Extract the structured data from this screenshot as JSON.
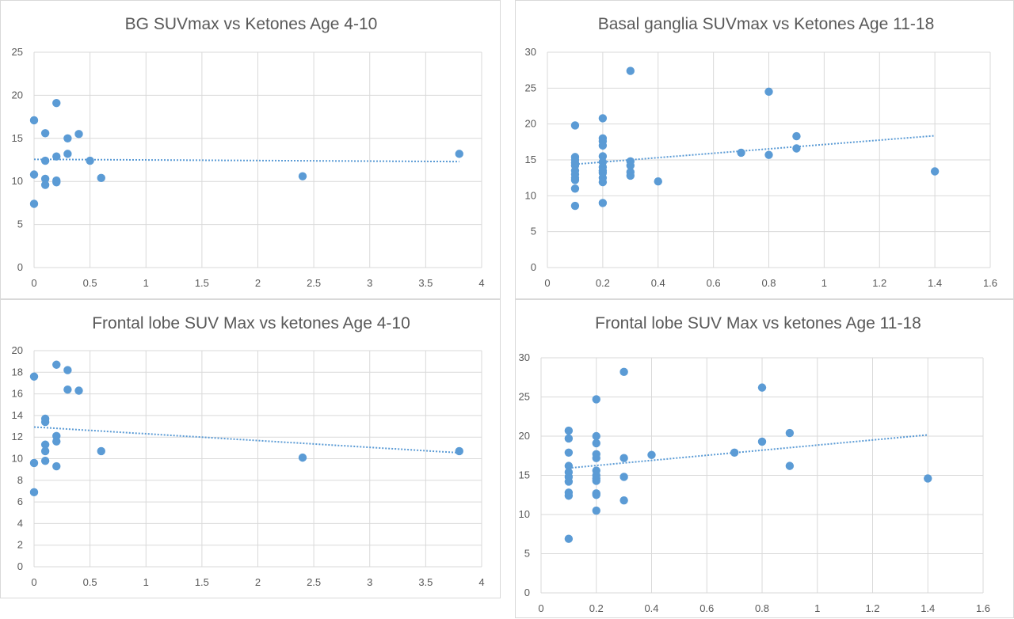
{
  "chart_data": [
    {
      "type": "scatter",
      "title": "BG SUVmax vs Ketones Age 4-10",
      "xlim": [
        0,
        4
      ],
      "ylim": [
        0,
        25
      ],
      "xticks": [
        "0",
        "0.5",
        "1",
        "1.5",
        "2",
        "2.5",
        "3",
        "3.5",
        "4"
      ],
      "yticks": [
        "0",
        "5",
        "10",
        "15",
        "20",
        "25"
      ],
      "grid": true,
      "legend": "none",
      "trendline": "linear",
      "color": "#5b9bd5",
      "points": [
        [
          0,
          17.1
        ],
        [
          0,
          10.8
        ],
        [
          0,
          7.4
        ],
        [
          0.1,
          15.6
        ],
        [
          0.1,
          12.4
        ],
        [
          0.1,
          10.3
        ],
        [
          0.1,
          9.6
        ],
        [
          0.2,
          19.1
        ],
        [
          0.2,
          12.9
        ],
        [
          0.2,
          10.1
        ],
        [
          0.2,
          9.9
        ],
        [
          0.3,
          15.0
        ],
        [
          0.3,
          13.2
        ],
        [
          0.4,
          15.5
        ],
        [
          0.5,
          12.4
        ],
        [
          0.6,
          10.4
        ],
        [
          2.4,
          10.6
        ],
        [
          3.8,
          13.2
        ]
      ]
    },
    {
      "type": "scatter",
      "title": "Basal ganglia SUVmax vs Ketones Age 11-18",
      "xlim": [
        0,
        1.6
      ],
      "ylim": [
        0,
        30
      ],
      "xticks": [
        "0",
        "0.2",
        "0.4",
        "0.6",
        "0.8",
        "1",
        "1.2",
        "1.4",
        "1.6"
      ],
      "yticks": [
        "0",
        "5",
        "10",
        "15",
        "20",
        "25",
        "30"
      ],
      "grid": true,
      "legend": "none",
      "trendline": "linear",
      "color": "#5b9bd5",
      "points": [
        [
          0.1,
          19.8
        ],
        [
          0.1,
          15.4
        ],
        [
          0.1,
          15.0
        ],
        [
          0.1,
          14.6
        ],
        [
          0.1,
          14.2
        ],
        [
          0.1,
          13.5
        ],
        [
          0.1,
          13.0
        ],
        [
          0.1,
          12.5
        ],
        [
          0.1,
          12.2
        ],
        [
          0.1,
          11.0
        ],
        [
          0.1,
          8.6
        ],
        [
          0.2,
          20.8
        ],
        [
          0.2,
          18.0
        ],
        [
          0.2,
          17.6
        ],
        [
          0.2,
          17.0
        ],
        [
          0.2,
          15.5
        ],
        [
          0.2,
          14.7
        ],
        [
          0.2,
          14.0
        ],
        [
          0.2,
          13.5
        ],
        [
          0.2,
          13.2
        ],
        [
          0.2,
          12.5
        ],
        [
          0.2,
          11.9
        ],
        [
          0.2,
          9.0
        ],
        [
          0.3,
          27.4
        ],
        [
          0.3,
          14.8
        ],
        [
          0.3,
          14.2
        ],
        [
          0.3,
          13.3
        ],
        [
          0.3,
          12.8
        ],
        [
          0.4,
          12.0
        ],
        [
          0.7,
          16.0
        ],
        [
          0.8,
          24.5
        ],
        [
          0.8,
          15.7
        ],
        [
          0.9,
          18.3
        ],
        [
          0.9,
          16.6
        ],
        [
          1.4,
          13.4
        ]
      ]
    },
    {
      "type": "scatter",
      "title": "Frontal lobe SUV Max vs ketones Age 4-10",
      "xlim": [
        0,
        4
      ],
      "ylim": [
        0,
        20
      ],
      "xticks": [
        "0",
        "0.5",
        "1",
        "1.5",
        "2",
        "2.5",
        "3",
        "3.5",
        "4"
      ],
      "yticks": [
        "0",
        "2",
        "4",
        "6",
        "8",
        "10",
        "12",
        "14",
        "16",
        "18",
        "20"
      ],
      "grid": true,
      "legend": "none",
      "trendline": "linear",
      "color": "#5b9bd5",
      "points": [
        [
          0,
          17.6
        ],
        [
          0,
          9.6
        ],
        [
          0,
          6.9
        ],
        [
          0.1,
          13.7
        ],
        [
          0.1,
          13.4
        ],
        [
          0.1,
          11.3
        ],
        [
          0.1,
          10.7
        ],
        [
          0.1,
          9.8
        ],
        [
          0.2,
          18.7
        ],
        [
          0.2,
          12.1
        ],
        [
          0.2,
          11.6
        ],
        [
          0.2,
          9.3
        ],
        [
          0.3,
          18.2
        ],
        [
          0.3,
          16.4
        ],
        [
          0.4,
          16.3
        ],
        [
          0.6,
          10.7
        ],
        [
          2.4,
          10.1
        ],
        [
          3.8,
          10.7
        ]
      ]
    },
    {
      "type": "scatter",
      "title": "Frontal lobe SUV Max vs ketones  Age 11-18",
      "xlim": [
        0,
        1.6
      ],
      "ylim": [
        0,
        30
      ],
      "xticks": [
        "0",
        "0.2",
        "0.4",
        "0.6",
        "0.8",
        "1",
        "1.2",
        "1.4",
        "1.6"
      ],
      "yticks": [
        "0",
        "5",
        "10",
        "15",
        "20",
        "25",
        "30"
      ],
      "grid": true,
      "legend": "none",
      "trendline": "linear",
      "color": "#5b9bd5",
      "points": [
        [
          0.1,
          20.7
        ],
        [
          0.1,
          19.7
        ],
        [
          0.1,
          17.9
        ],
        [
          0.1,
          16.2
        ],
        [
          0.1,
          15.4
        ],
        [
          0.1,
          14.8
        ],
        [
          0.1,
          14.2
        ],
        [
          0.1,
          12.8
        ],
        [
          0.1,
          12.4
        ],
        [
          0.1,
          6.9
        ],
        [
          0.2,
          24.7
        ],
        [
          0.2,
          20.0
        ],
        [
          0.2,
          19.1
        ],
        [
          0.2,
          17.7
        ],
        [
          0.2,
          17.2
        ],
        [
          0.2,
          15.6
        ],
        [
          0.2,
          15.0
        ],
        [
          0.2,
          14.6
        ],
        [
          0.2,
          14.3
        ],
        [
          0.2,
          12.7
        ],
        [
          0.2,
          12.5
        ],
        [
          0.2,
          10.5
        ],
        [
          0.3,
          28.2
        ],
        [
          0.3,
          17.2
        ],
        [
          0.3,
          14.8
        ],
        [
          0.3,
          11.8
        ],
        [
          0.4,
          17.6
        ],
        [
          0.7,
          17.9
        ],
        [
          0.8,
          26.2
        ],
        [
          0.8,
          19.3
        ],
        [
          0.9,
          20.4
        ],
        [
          0.9,
          16.2
        ],
        [
          1.4,
          14.6
        ]
      ]
    }
  ]
}
